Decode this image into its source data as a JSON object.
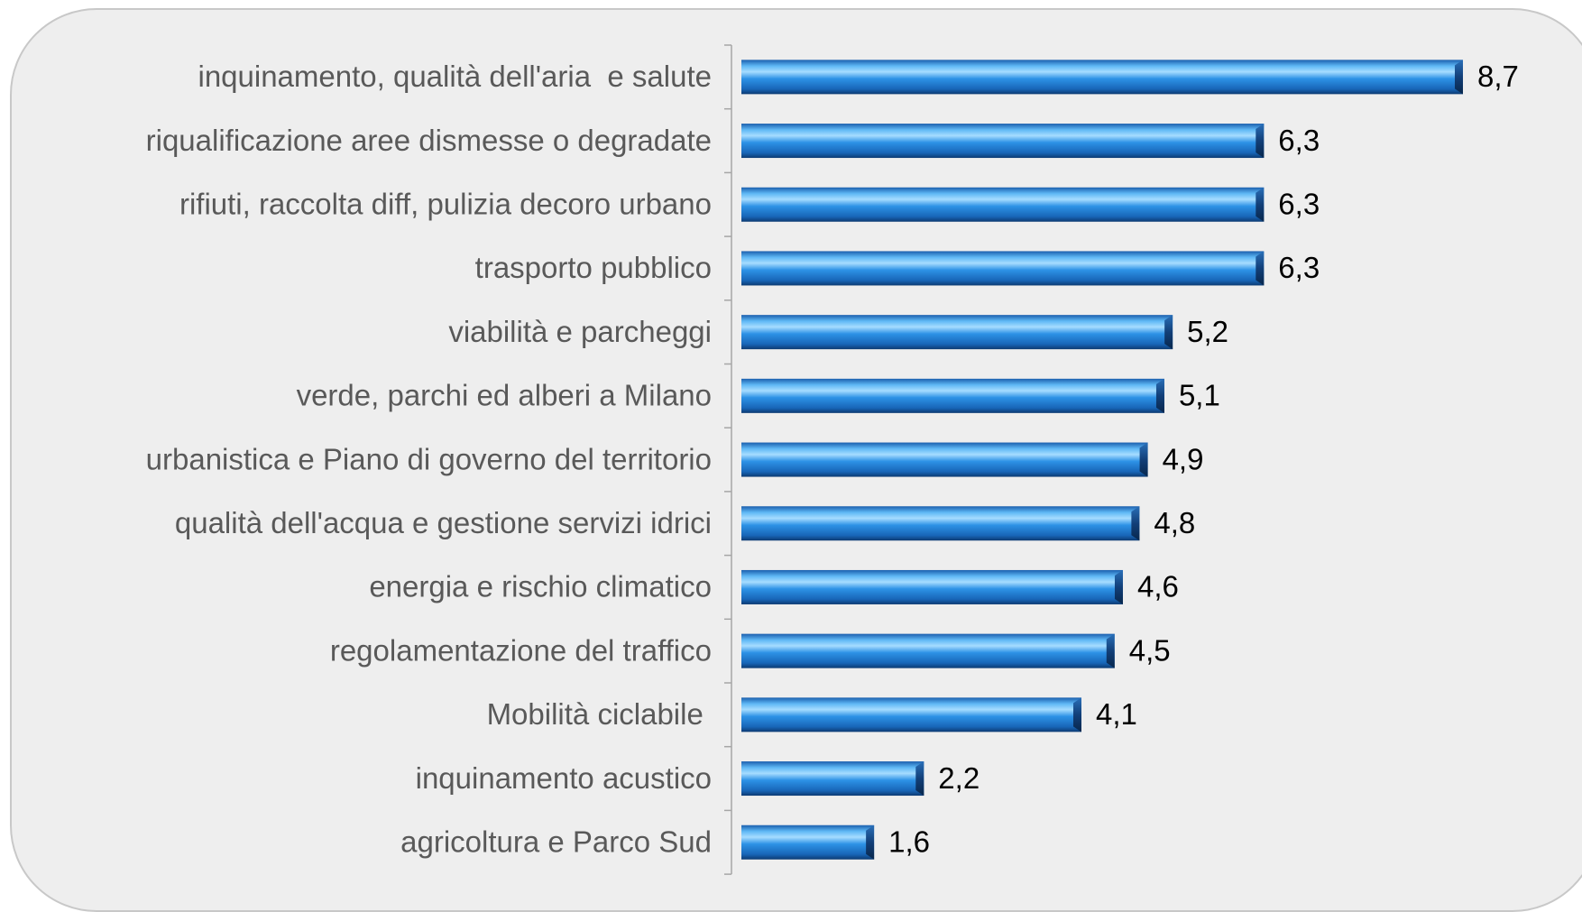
{
  "chart_data": {
    "type": "barh",
    "categories": [
      "inquinamento, qualità dell'aria  e salute",
      "riqualificazione aree dismesse o degradate",
      "rifiuti, raccolta diff, pulizia decoro urbano",
      "trasporto pubblico",
      "viabilità e parcheggi",
      "verde, parchi ed alberi a Milano",
      "urbanistica e Piano di governo del territorio",
      "qualità dell'acqua e gestione servizi idrici",
      "energia e rischio climatico",
      "regolamentazione del traffico",
      "Mobilità ciclabile ",
      "inquinamento acustico",
      "agricoltura e Parco Sud"
    ],
    "values": [
      8.7,
      6.3,
      6.3,
      6.3,
      5.2,
      5.1,
      4.9,
      4.8,
      4.6,
      4.5,
      4.1,
      2.2,
      1.6
    ],
    "value_labels": [
      "8,7",
      "6,3",
      "6,3",
      "6,3",
      "5,2",
      "5,1",
      "4,9",
      "4,8",
      "4,6",
      "4,5",
      "4,1",
      "2,2",
      "1,6"
    ],
    "color": "#2a8be0"
  }
}
